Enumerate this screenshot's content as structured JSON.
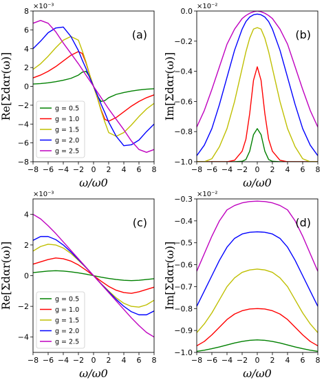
{
  "chart_data": [
    {
      "id": "a",
      "type": "line",
      "panel_label": "(a)",
      "xlabel": "ω/ω0",
      "ylabel": "Re[Σdαr(ω)]",
      "multiplier": "×10⁻³",
      "xlim": [
        -8,
        8
      ],
      "ylim": [
        -8,
        8
      ],
      "xticks": [
        -8,
        -6,
        -4,
        -2,
        0,
        2,
        4,
        6,
        8
      ],
      "xtick_labels": [
        "−8",
        "−6",
        "−4",
        "−2",
        "0",
        "2",
        "4",
        "6",
        "8"
      ],
      "yticks": [
        -8,
        -6,
        -4,
        -2,
        0,
        2,
        4,
        6,
        8
      ],
      "ytick_labels": [
        "−8",
        "−6",
        "−4",
        "−2",
        "0",
        "2",
        "4",
        "6",
        "8"
      ],
      "legend": "lower-left",
      "x": [
        -8,
        -7,
        -6,
        -5,
        -4,
        -3,
        -2,
        -1.5,
        -1,
        -0.5,
        0,
        0.5,
        1,
        1.5,
        2,
        3,
        4,
        5,
        6,
        7,
        8
      ],
      "series": [
        {
          "name": "g = 0.5",
          "color": "#008000",
          "values": [
            0.25,
            0.3,
            0.38,
            0.5,
            0.65,
            0.85,
            1.2,
            1.5,
            1.6,
            1.0,
            0,
            -1.0,
            -1.6,
            -1.5,
            -1.2,
            -0.85,
            -0.65,
            -0.5,
            -0.38,
            -0.3,
            -0.25
          ]
        },
        {
          "name": "g = 1.0",
          "color": "#ff0000",
          "values": [
            0.9,
            1.2,
            1.6,
            2.1,
            2.7,
            3.3,
            3.7,
            3.5,
            2.5,
            1.2,
            0,
            -1.2,
            -2.5,
            -3.5,
            -3.7,
            -3.3,
            -2.7,
            -2.1,
            -1.6,
            -1.2,
            -0.9
          ]
        },
        {
          "name": "g = 1.5",
          "color": "#bfbf00",
          "values": [
            1.8,
            2.4,
            3.2,
            4.1,
            4.9,
            5.3,
            4.9,
            3.8,
            2.6,
            1.2,
            0,
            -1.2,
            -2.6,
            -3.8,
            -4.9,
            -5.3,
            -4.9,
            -4.1,
            -3.2,
            -2.4,
            -1.8
          ]
        },
        {
          "name": "g = 2.0",
          "color": "#0000ff",
          "values": [
            4.0,
            4.8,
            5.7,
            6.2,
            6.3,
            5.3,
            3.8,
            2.8,
            1.9,
            0.9,
            0,
            -0.9,
            -1.9,
            -2.8,
            -3.8,
            -5.3,
            -6.3,
            -6.2,
            -5.7,
            -4.8,
            -4.0
          ]
        },
        {
          "name": "g = 2.5",
          "color": "#bf00bf",
          "values": [
            6.7,
            7.0,
            6.7,
            5.8,
            4.6,
            3.5,
            2.4,
            1.8,
            1.2,
            0.6,
            0,
            -0.6,
            -1.2,
            -1.8,
            -2.4,
            -3.5,
            -4.6,
            -5.8,
            -6.7,
            -7.0,
            -6.7
          ]
        }
      ]
    },
    {
      "id": "b",
      "type": "line",
      "panel_label": "(b)",
      "xlabel": "ω/ω0",
      "ylabel": "Im[Σdαr(ω)]",
      "multiplier": "×10⁻²",
      "xlim": [
        -8,
        8
      ],
      "ylim": [
        -1.0,
        0.0
      ],
      "xticks": [
        -8,
        -6,
        -4,
        -2,
        0,
        2,
        4,
        6,
        8
      ],
      "xtick_labels": [
        "−8",
        "−6",
        "−4",
        "−2",
        "0",
        "2",
        "4",
        "6",
        "8"
      ],
      "yticks": [
        -1.0,
        -0.8,
        -0.6,
        -0.4,
        -0.2,
        0.0
      ],
      "ytick_labels": [
        "−1.0",
        "−0.8",
        "−0.6",
        "−0.4",
        "−0.2",
        "0.0"
      ],
      "x": [
        -8,
        -7,
        -6,
        -5,
        -4,
        -3,
        -2,
        -1.5,
        -1,
        -0.5,
        0,
        0.5,
        1,
        1.5,
        2,
        3,
        4,
        5,
        6,
        7,
        8
      ],
      "series": [
        {
          "name": "g = 0.5",
          "color": "#008000",
          "values": [
            -1.0,
            -1.0,
            -1.0,
            -1.0,
            -1.0,
            -1.0,
            -0.997,
            -0.985,
            -0.93,
            -0.82,
            -0.78,
            -0.82,
            -0.93,
            -0.985,
            -0.997,
            -1.0,
            -1.0,
            -1.0,
            -1.0,
            -1.0,
            -1.0
          ]
        },
        {
          "name": "g = 1.0",
          "color": "#ff0000",
          "values": [
            -1.0,
            -1.0,
            -1.0,
            -1.0,
            -1.0,
            -0.99,
            -0.93,
            -0.85,
            -0.68,
            -0.46,
            -0.37,
            -0.46,
            -0.68,
            -0.85,
            -0.93,
            -0.99,
            -1.0,
            -1.0,
            -1.0,
            -1.0,
            -1.0
          ]
        },
        {
          "name": "g = 1.5",
          "color": "#bfbf00",
          "values": [
            -1.0,
            -1.0,
            -0.98,
            -0.9,
            -0.78,
            -0.6,
            -0.38,
            -0.27,
            -0.18,
            -0.12,
            -0.11,
            -0.12,
            -0.18,
            -0.27,
            -0.38,
            -0.6,
            -0.78,
            -0.9,
            -0.98,
            -1.0,
            -1.0
          ]
        },
        {
          "name": "g = 2.0",
          "color": "#0000ff",
          "values": [
            -0.96,
            -0.89,
            -0.78,
            -0.62,
            -0.44,
            -0.26,
            -0.12,
            -0.07,
            -0.04,
            -0.025,
            -0.02,
            -0.025,
            -0.04,
            -0.07,
            -0.12,
            -0.26,
            -0.44,
            -0.62,
            -0.78,
            -0.89,
            -0.96
          ]
        },
        {
          "name": "g = 2.5",
          "color": "#bf00bf",
          "values": [
            -0.77,
            -0.66,
            -0.52,
            -0.37,
            -0.22,
            -0.12,
            -0.05,
            -0.03,
            -0.015,
            -0.005,
            0.0,
            -0.005,
            -0.015,
            -0.03,
            -0.05,
            -0.12,
            -0.22,
            -0.37,
            -0.52,
            -0.66,
            -0.77
          ]
        }
      ]
    },
    {
      "id": "c",
      "type": "line",
      "panel_label": "(c)",
      "xlabel": "ω/ω0",
      "ylabel": "Re[Σdαr(ω)]",
      "multiplier": "×10⁻³",
      "xlim": [
        -8,
        8
      ],
      "ylim": [
        -5,
        5
      ],
      "xticks": [
        -8,
        -6,
        -4,
        -2,
        0,
        2,
        4,
        6,
        8
      ],
      "xtick_labels": [
        "−8",
        "−6",
        "−4",
        "−2",
        "0",
        "2",
        "4",
        "6",
        "8"
      ],
      "yticks": [
        -4,
        -2,
        0,
        2,
        4
      ],
      "ytick_labels": [
        "−4",
        "−2",
        "0",
        "2",
        "4"
      ],
      "legend": "lower-left",
      "x": [
        -8,
        -7,
        -6,
        -5,
        -4,
        -3,
        -2,
        -1,
        0,
        1,
        2,
        3,
        4,
        5,
        6,
        7,
        8
      ],
      "series": [
        {
          "name": "g = 0.5",
          "color": "#008000",
          "values": [
            0.2,
            0.25,
            0.3,
            0.32,
            0.3,
            0.25,
            0.18,
            0.1,
            0,
            -0.1,
            -0.18,
            -0.25,
            -0.3,
            -0.32,
            -0.3,
            -0.25,
            -0.2
          ]
        },
        {
          "name": "g = 1.0",
          "color": "#ff0000",
          "values": [
            0.75,
            0.9,
            1.05,
            1.15,
            1.1,
            0.95,
            0.7,
            0.36,
            0,
            -0.36,
            -0.7,
            -0.95,
            -1.1,
            -1.15,
            -1.05,
            -0.9,
            -0.75
          ]
        },
        {
          "name": "g = 1.5",
          "color": "#bfbf00",
          "values": [
            1.6,
            1.9,
            2.05,
            2.0,
            1.8,
            1.45,
            1.0,
            0.52,
            0,
            -0.52,
            -1.0,
            -1.45,
            -1.8,
            -2.0,
            -2.05,
            -1.9,
            -1.6
          ]
        },
        {
          "name": "g = 2.0",
          "color": "#0000ff",
          "values": [
            2.3,
            2.55,
            2.55,
            2.35,
            2.0,
            1.55,
            1.05,
            0.53,
            0,
            -0.53,
            -1.05,
            -1.55,
            -2.0,
            -2.35,
            -2.55,
            -2.55,
            -2.3
          ]
        },
        {
          "name": "g = 2.5",
          "color": "#bf00bf",
          "values": [
            4.0,
            3.7,
            3.25,
            2.75,
            2.2,
            1.65,
            1.1,
            0.55,
            0,
            -0.55,
            -1.1,
            -1.65,
            -2.2,
            -2.75,
            -3.25,
            -3.7,
            -4.0
          ]
        }
      ]
    },
    {
      "id": "d",
      "type": "line",
      "panel_label": "(d)",
      "xlabel": "ω/ω0",
      "ylabel": "Im[Σdαr(ω)]",
      "multiplier": "×10⁻²",
      "xlim": [
        -8,
        8
      ],
      "ylim": [
        -1.0,
        -0.3
      ],
      "xticks": [
        -8,
        -6,
        -4,
        -2,
        0,
        2,
        4,
        6,
        8
      ],
      "xtick_labels": [
        "−8",
        "−6",
        "−4",
        "−2",
        "0",
        "2",
        "4",
        "6",
        "8"
      ],
      "yticks": [
        -1.0,
        -0.9,
        -0.8,
        -0.7,
        -0.6,
        -0.5,
        -0.4,
        -0.3
      ],
      "ytick_labels": [
        "−1.0",
        "−0.9",
        "−0.8",
        "−0.7",
        "−0.6",
        "−0.5",
        "−0.4",
        "−0.3"
      ],
      "x": [
        -8,
        -7,
        -6,
        -5,
        -4,
        -3,
        -2,
        -1,
        0,
        1,
        2,
        3,
        4,
        5,
        6,
        7,
        8
      ],
      "series": [
        {
          "name": "g = 0.5",
          "color": "#008000",
          "values": [
            -0.995,
            -0.99,
            -0.983,
            -0.975,
            -0.966,
            -0.957,
            -0.95,
            -0.945,
            -0.943,
            -0.945,
            -0.95,
            -0.957,
            -0.966,
            -0.975,
            -0.983,
            -0.99,
            -0.995
          ]
        },
        {
          "name": "g = 1.0",
          "color": "#ff0000",
          "values": [
            -0.97,
            -0.95,
            -0.92,
            -0.885,
            -0.85,
            -0.825,
            -0.81,
            -0.802,
            -0.8,
            -0.802,
            -0.81,
            -0.825,
            -0.85,
            -0.885,
            -0.92,
            -0.95,
            -0.97
          ]
        },
        {
          "name": "g = 1.5",
          "color": "#bfbf00",
          "values": [
            -0.91,
            -0.87,
            -0.82,
            -0.76,
            -0.7,
            -0.66,
            -0.635,
            -0.624,
            -0.62,
            -0.624,
            -0.635,
            -0.66,
            -0.7,
            -0.76,
            -0.82,
            -0.87,
            -0.91
          ]
        },
        {
          "name": "g = 2.0",
          "color": "#0000ff",
          "values": [
            -0.79,
            -0.72,
            -0.65,
            -0.58,
            -0.52,
            -0.48,
            -0.46,
            -0.452,
            -0.45,
            -0.452,
            -0.46,
            -0.48,
            -0.52,
            -0.58,
            -0.65,
            -0.72,
            -0.79
          ]
        },
        {
          "name": "g = 2.5",
          "color": "#bf00bf",
          "values": [
            -0.63,
            -0.55,
            -0.47,
            -0.4,
            -0.35,
            -0.33,
            -0.318,
            -0.312,
            -0.31,
            -0.312,
            -0.318,
            -0.33,
            -0.35,
            -0.4,
            -0.47,
            -0.55,
            -0.63
          ]
        }
      ]
    }
  ]
}
